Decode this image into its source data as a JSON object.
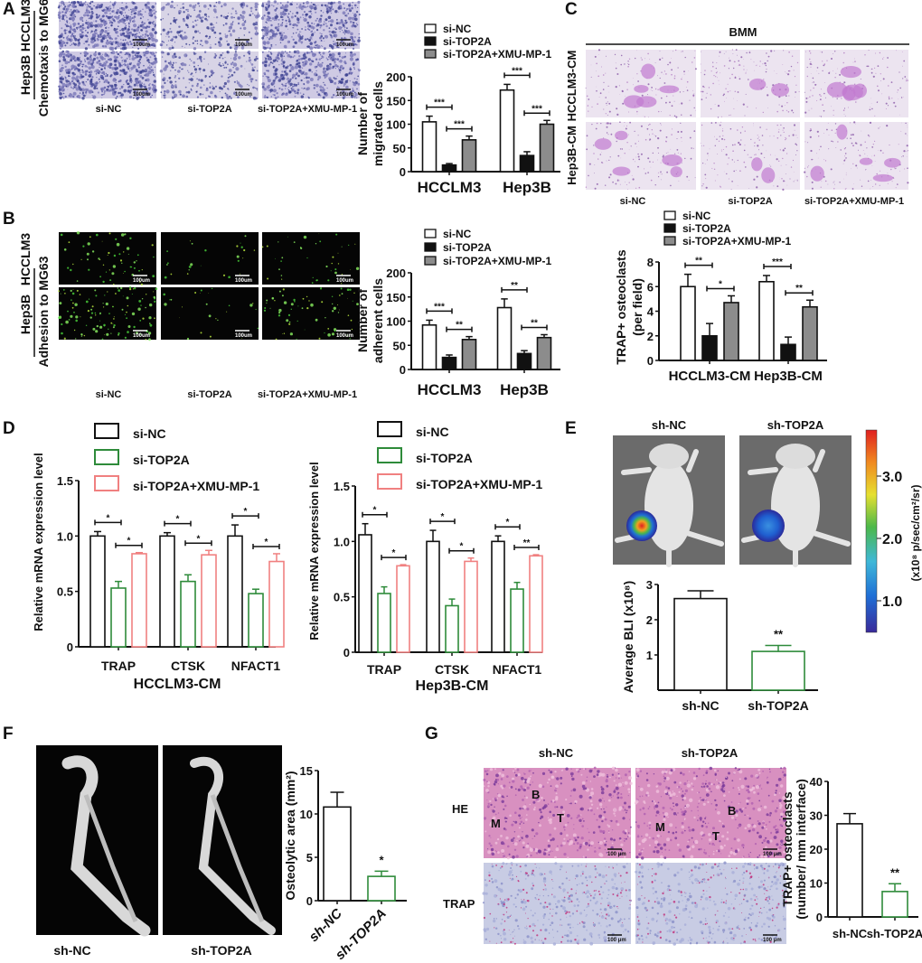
{
  "panel_labels": [
    "A",
    "B",
    "C",
    "D",
    "E",
    "F",
    "G"
  ],
  "panel_a": {
    "rows": [
      "HCCLM3",
      "Hep3B"
    ],
    "side_label": "Chemotaxis to MG63",
    "columns": [
      "si-NC",
      "si-TOP2A",
      "si-TOP2A+XMU-MP-1"
    ],
    "scale_bar": "100um"
  },
  "panel_b": {
    "rows": [
      "HCCLM3",
      "Hep3B"
    ],
    "side_label": "Adhesion to MG63",
    "columns": [
      "si-NC",
      "si-TOP2A",
      "si-TOP2A+XMU-MP-1"
    ],
    "scale_bar": "100um"
  },
  "panel_c": {
    "header": "BMM",
    "rows": [
      "HCCLM3-CM",
      "Hep3B-CM"
    ],
    "columns": [
      "si-NC",
      "si-TOP2A",
      "si-TOP2A+XMU-MP-1"
    ]
  },
  "panel_e": {
    "columns": [
      "sh-NC",
      "sh-TOP2A"
    ],
    "colorbar": {
      "ticks": [
        "1.0",
        "2.0",
        "3.0"
      ],
      "label": "(x10⁸ p/sec/cm²/sr)",
      "colors": [
        "#3a2a9a",
        "#1f6fd6",
        "#3fb8d8",
        "#4cb84a",
        "#e6e030",
        "#f08a20",
        "#e02020"
      ]
    }
  },
  "panel_f": {
    "columns": [
      "sh-NC",
      "sh-TOP2A"
    ]
  },
  "panel_g": {
    "columns": [
      "sh-NC",
      "sh-TOP2A"
    ],
    "rows": [
      "HE",
      "TRAP"
    ],
    "annotations": [
      "M",
      "B",
      "T"
    ],
    "scale_bar": "100 μm"
  },
  "chart_data": [
    {
      "panel": "A",
      "type": "bar",
      "categories": [
        "HCCLM3",
        "Hep3B"
      ],
      "ylabel_lines": [
        "Number of",
        "migrated cells"
      ],
      "xlabel": "",
      "ylim": [
        0,
        200
      ],
      "ytick_labels": [
        "0",
        "50",
        "100",
        "150",
        "200"
      ],
      "legend": "top",
      "series": [
        {
          "name": "si-NC",
          "values": [
            105,
            172
          ],
          "errors": [
            12,
            12
          ],
          "fill": "#ffffff",
          "stroke": "#111111"
        },
        {
          "name": "si-TOP2A",
          "values": [
            14,
            34
          ],
          "errors": [
            3,
            8
          ],
          "fill": "#111111",
          "stroke": "#111111"
        },
        {
          "name": "si-TOP2A+XMU-MP-1",
          "values": [
            67,
            100
          ],
          "errors": [
            8,
            8
          ],
          "fill": "#8c8c8c",
          "stroke": "#111111"
        }
      ],
      "significance": [
        [
          "***",
          "***"
        ],
        [
          "***",
          "***"
        ]
      ]
    },
    {
      "panel": "B",
      "type": "bar",
      "categories": [
        "HCCLM3",
        "Hep3B"
      ],
      "ylabel_lines": [
        "Number of",
        "adherent cells"
      ],
      "xlabel": "",
      "ylim": [
        0,
        200
      ],
      "ytick_labels": [
        "0",
        "50",
        "100",
        "150",
        "200"
      ],
      "legend": "top",
      "series": [
        {
          "name": "si-NC",
          "values": [
            92,
            128
          ],
          "errors": [
            10,
            18
          ],
          "fill": "#ffffff",
          "stroke": "#111111"
        },
        {
          "name": "si-TOP2A",
          "values": [
            25,
            33
          ],
          "errors": [
            5,
            6
          ],
          "fill": "#111111",
          "stroke": "#111111"
        },
        {
          "name": "si-TOP2A+XMU-MP-1",
          "values": [
            62,
            66
          ],
          "errors": [
            6,
            6
          ],
          "fill": "#8c8c8c",
          "stroke": "#111111"
        }
      ],
      "significance": [
        [
          "***",
          "**"
        ],
        [
          "**",
          "**"
        ]
      ]
    },
    {
      "panel": "C",
      "type": "bar",
      "categories": [
        "HCCLM3-CM",
        "Hep3B-CM"
      ],
      "ylabel_lines": [
        "TRAP+ osteoclasts",
        "(per field)"
      ],
      "xlabel": "",
      "ylim": [
        0,
        8
      ],
      "ytick_labels": [
        "0",
        "2",
        "4",
        "6",
        "8"
      ],
      "legend": "top",
      "series": [
        {
          "name": "si-NC",
          "values": [
            6.0,
            6.4
          ],
          "errors": [
            1.0,
            0.5
          ],
          "fill": "#ffffff",
          "stroke": "#111111"
        },
        {
          "name": "si-TOP2A",
          "values": [
            2.0,
            1.3
          ],
          "errors": [
            1.0,
            0.6
          ],
          "fill": "#111111",
          "stroke": "#111111"
        },
        {
          "name": "si-TOP2A+XMU-MP-1",
          "values": [
            4.7,
            4.35
          ],
          "errors": [
            0.55,
            0.55
          ],
          "fill": "#8c8c8c",
          "stroke": "#111111"
        }
      ],
      "significance": [
        [
          "**",
          "*"
        ],
        [
          "***",
          "**"
        ]
      ]
    },
    {
      "panel": "D",
      "type": "bar",
      "categories": [
        "TRAP",
        "CTSK",
        "NFACT1"
      ],
      "ylabel_lines": [
        "Relative mRNA expression level"
      ],
      "xlabel": "HCCLM3-CM",
      "ylim": [
        0,
        1.5
      ],
      "ytick_labels": [
        "0",
        "0.5",
        "1.0",
        "1.5"
      ],
      "legend": "top-left",
      "series": [
        {
          "name": "si-NC",
          "values": [
            1.0,
            1.0,
            1.0
          ],
          "errors": [
            0.04,
            0.03,
            0.1
          ],
          "fill": "#ffffff",
          "stroke": "#111111"
        },
        {
          "name": "si-TOP2A",
          "values": [
            0.53,
            0.59,
            0.48
          ],
          "errors": [
            0.06,
            0.06,
            0.04
          ],
          "fill": "#ffffff",
          "stroke": "#2e8b3a"
        },
        {
          "name": "si-TOP2A+XMU-MP-1",
          "values": [
            0.84,
            0.83,
            0.77
          ],
          "errors": [
            0.01,
            0.04,
            0.07
          ],
          "fill": "#ffffff",
          "stroke": "#f08080"
        }
      ],
      "significance": [
        [
          "*",
          "*"
        ],
        [
          "*",
          "*"
        ],
        [
          "*",
          "*"
        ]
      ]
    },
    {
      "panel": "D",
      "type": "bar",
      "categories": [
        "TRAP",
        "CTSK",
        "NFACT1"
      ],
      "ylabel_lines": [
        "Relative mRNA expression level"
      ],
      "xlabel": "Hep3B-CM",
      "ylim": [
        0,
        1.5
      ],
      "ytick_labels": [
        "0",
        "0.5",
        "1.0",
        "1.5"
      ],
      "legend": "top-left",
      "series": [
        {
          "name": "si-NC",
          "values": [
            1.06,
            1.0,
            1.0
          ],
          "errors": [
            0.1,
            0.1,
            0.05
          ],
          "fill": "#ffffff",
          "stroke": "#111111"
        },
        {
          "name": "si-TOP2A",
          "values": [
            0.53,
            0.42,
            0.57
          ],
          "errors": [
            0.06,
            0.06,
            0.06
          ],
          "fill": "#ffffff",
          "stroke": "#2e8b3a"
        },
        {
          "name": "si-TOP2A+XMU-MP-1",
          "values": [
            0.78,
            0.82,
            0.87
          ],
          "errors": [
            0.01,
            0.03,
            0.01
          ],
          "fill": "#ffffff",
          "stroke": "#f08080"
        }
      ],
      "significance": [
        [
          "*",
          "*"
        ],
        [
          "*",
          "*"
        ],
        [
          "*",
          "**"
        ]
      ]
    },
    {
      "panel": "E",
      "type": "bar",
      "categories": [
        "sh-NC",
        "sh-TOP2A"
      ],
      "ylabel_lines": [
        "Average BLI (x10⁸)"
      ],
      "xlabel": "",
      "ylim": [
        0,
        3
      ],
      "ytick_labels": [
        "1",
        "2",
        "3"
      ],
      "values": [
        2.6,
        1.1
      ],
      "errors": [
        0.22,
        0.17
      ],
      "strokes": [
        "#111111",
        "#2e8b3a"
      ],
      "significance": [
        "",
        "**"
      ]
    },
    {
      "panel": "F",
      "type": "bar",
      "categories": [
        "sh-NC",
        "sh-TOP2A"
      ],
      "ylabel_lines": [
        "Osteolytic area (mm²)"
      ],
      "xlabel": "",
      "ylim": [
        0,
        15
      ],
      "ytick_labels": [
        "0",
        "5",
        "10",
        "15"
      ],
      "values": [
        10.8,
        2.8
      ],
      "errors": [
        1.7,
        0.6
      ],
      "strokes": [
        "#111111",
        "#2e8b3a"
      ],
      "significance": [
        "",
        "*"
      ]
    },
    {
      "panel": "G",
      "type": "bar",
      "categories": [
        "sh-NC",
        "sh-TOP2A"
      ],
      "ylabel_lines": [
        "TRAP+ osteoclasts",
        "(number/ mm interface)"
      ],
      "xlabel": "",
      "ylim": [
        0,
        40
      ],
      "ytick_labels": [
        "0",
        "10",
        "20",
        "30",
        "40"
      ],
      "values": [
        27.5,
        7.5
      ],
      "errors": [
        3,
        2.3
      ],
      "strokes": [
        "#111111",
        "#2e8b3a"
      ],
      "significance": [
        "",
        "**"
      ]
    }
  ]
}
